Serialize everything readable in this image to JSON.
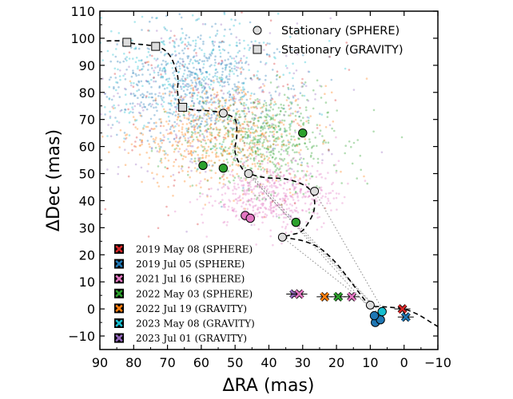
{
  "chart_data": {
    "type": "scatter",
    "xlabel": "ΔRA (mas)",
    "ylabel": "ΔDec (mas)",
    "xlim": [
      90,
      -10
    ],
    "ylim": [
      -15,
      110
    ],
    "x_ticks": [
      90,
      80,
      70,
      60,
      50,
      40,
      30,
      20,
      10,
      0,
      -10
    ],
    "y_ticks": [
      -10,
      0,
      10,
      20,
      30,
      40,
      50,
      60,
      70,
      80,
      90,
      100,
      110
    ],
    "legend_top": {
      "placement": "top-right",
      "entries": [
        {
          "marker": "circle",
          "label": "Stationary (SPHERE)"
        },
        {
          "marker": "square",
          "label": "Stationary (GRAVITY)"
        }
      ]
    },
    "legend_bottom": {
      "placement": "bottom-left",
      "entries": [
        {
          "label": "2019 May 08 (SPHERE)",
          "color": "#d62728"
        },
        {
          "label": "2019 Jul 05 (SPHERE)",
          "color": "#1f77b4"
        },
        {
          "label": "2021 Jul 16 (SPHERE)",
          "color": "#e377c2"
        },
        {
          "label": "2022 May 03 (SPHERE)",
          "color": "#2ca02c"
        },
        {
          "label": "2022 Jul 19 (GRAVITY)",
          "color": "#ff7f0e"
        },
        {
          "label": "2023 May 08 (GRAVITY)",
          "color": "#17becf"
        },
        {
          "label": "2023 Jul 01 (GRAVITY)",
          "color": "#9467bd"
        }
      ]
    },
    "stationary_track": [
      [
        88,
        99
      ],
      [
        84,
        99
      ],
      [
        80,
        98
      ],
      [
        76,
        97.5
      ],
      [
        72,
        96.5
      ],
      [
        69,
        93
      ],
      [
        67,
        86
      ],
      [
        67,
        80
      ],
      [
        66,
        75
      ],
      [
        62,
        73.5
      ],
      [
        58,
        73.2
      ],
      [
        53.5,
        72.3
      ],
      [
        50,
        70
      ],
      [
        49.5,
        64
      ],
      [
        50,
        58
      ],
      [
        48,
        52
      ],
      [
        46,
        50
      ],
      [
        41,
        48.5
      ],
      [
        35,
        48
      ],
      [
        30,
        46
      ],
      [
        27.5,
        43.5
      ],
      [
        26.5,
        40
      ],
      [
        27,
        35
      ],
      [
        30,
        29
      ],
      [
        33,
        27.5
      ],
      [
        36,
        26.5
      ],
      [
        33.5,
        26
      ],
      [
        29.5,
        25
      ],
      [
        25,
        22.5
      ],
      [
        20.5,
        17.5
      ],
      [
        16,
        10.5
      ],
      [
        13,
        5.5
      ],
      [
        10,
        1.4
      ],
      [
        6,
        0.8
      ],
      [
        3,
        0.5
      ],
      [
        0,
        0
      ],
      [
        -4,
        -2
      ],
      [
        -8,
        -5
      ],
      [
        -10,
        -6.5
      ]
    ],
    "stationary_sphere": [
      {
        "x": 53.5,
        "y": 72.3
      },
      {
        "x": 46,
        "y": 50
      },
      {
        "x": 26.5,
        "y": 43.5
      },
      {
        "x": 36,
        "y": 26.5
      },
      {
        "x": 10,
        "y": 1.4
      }
    ],
    "stationary_gravity": [
      {
        "x": 82,
        "y": 98.5
      },
      {
        "x": 73.5,
        "y": 97
      },
      {
        "x": 65.5,
        "y": 74.5
      }
    ],
    "detections_circle": [
      {
        "x": 59.5,
        "y": 53,
        "color": "#2ca02c"
      },
      {
        "x": 53.5,
        "y": 52,
        "color": "#2ca02c"
      },
      {
        "x": 30,
        "y": 65,
        "color": "#2ca02c"
      },
      {
        "x": 32,
        "y": 32,
        "color": "#2ca02c"
      },
      {
        "x": 47,
        "y": 34.5,
        "color": "#e377c2"
      },
      {
        "x": 45.5,
        "y": 33.5,
        "color": "#e377c2"
      },
      {
        "x": 8.5,
        "y": -5,
        "color": "#1f77b4"
      },
      {
        "x": 7,
        "y": -4,
        "color": "#1f77b4"
      },
      {
        "x": 8.8,
        "y": -2.5,
        "color": "#1f77b4"
      },
      {
        "x": 6.5,
        "y": -1,
        "color": "#17becf"
      }
    ],
    "detections_cross": [
      {
        "x": 0.5,
        "y": 0,
        "color": "#d62728"
      },
      {
        "x": -0.5,
        "y": -3,
        "color": "#1f77b4"
      },
      {
        "x": 15.5,
        "y": 4.5,
        "color": "#e377c2"
      },
      {
        "x": 19.5,
        "y": 4.5,
        "color": "#2ca02c"
      },
      {
        "x": 23.5,
        "y": 4.5,
        "color": "#ff7f0e"
      },
      {
        "x": 32.5,
        "y": 5.5,
        "color": "#9467bd"
      },
      {
        "x": 31,
        "y": 5.5,
        "color": "#e377c2"
      }
    ],
    "posterior_clouds": [
      {
        "color": "#1f77b4",
        "cx": 62,
        "cy": 82,
        "sx": 14,
        "sy": 11,
        "n": 650
      },
      {
        "color": "#17becf",
        "cx": 64,
        "cy": 86,
        "sx": 16,
        "sy": 12,
        "n": 300
      },
      {
        "color": "#2ca02c",
        "cx": 42,
        "cy": 62,
        "sx": 11,
        "sy": 9,
        "n": 600
      },
      {
        "color": "#ff7f0e",
        "cx": 55,
        "cy": 64,
        "sx": 13,
        "sy": 10,
        "n": 550
      },
      {
        "color": "#e377c2",
        "cx": 38,
        "cy": 42,
        "sx": 9,
        "sy": 6,
        "n": 500
      },
      {
        "color": "#9467bd",
        "cx": 58,
        "cy": 72,
        "sx": 18,
        "sy": 16,
        "n": 250
      },
      {
        "color": "#d62728",
        "cx": 55,
        "cy": 70,
        "sx": 22,
        "sy": 22,
        "n": 120
      }
    ],
    "dotted_links": [
      [
        [
          46,
          50
        ],
        [
          10,
          0
        ]
      ],
      [
        [
          44,
          48
        ],
        [
          8,
          0
        ]
      ],
      [
        [
          36,
          26.5
        ],
        [
          7,
          -2
        ]
      ],
      [
        [
          26.5,
          43.5
        ],
        [
          6,
          -1
        ]
      ],
      [
        [
          48,
          52
        ],
        [
          9,
          1
        ]
      ]
    ]
  }
}
